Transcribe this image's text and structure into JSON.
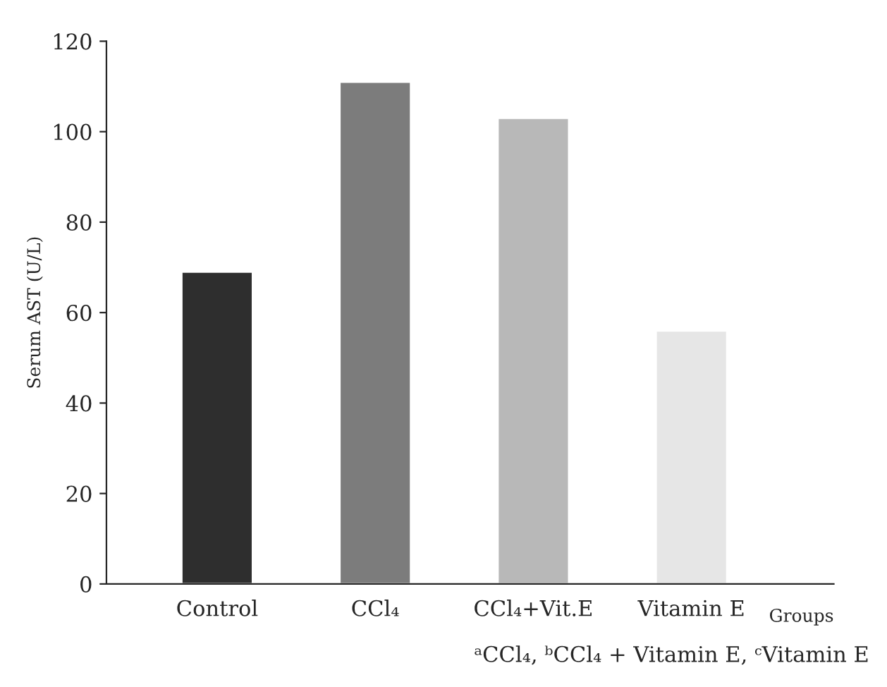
{
  "chart_data": {
    "type": "bar",
    "categories": [
      "Control",
      "CCl₄",
      "CCl₄+Vit.E",
      "Vitamin E"
    ],
    "values": [
      69,
      111,
      103,
      56
    ],
    "colors": [
      "#2e2e2e",
      "#7c7c7c",
      "#b8b8b8",
      "#e6e6e6"
    ],
    "ylabel": "Serum AST (U/L)",
    "xlabel": "Groups",
    "ylim": [
      0,
      120
    ],
    "yticks": [
      0,
      20,
      40,
      60,
      80,
      100,
      120
    ],
    "annotations": [
      "ᵃCCl₄, ᵇCCl₄ + Vitamin E, ᶜVitamin E"
    ],
    "grid": false,
    "legend": false
  }
}
